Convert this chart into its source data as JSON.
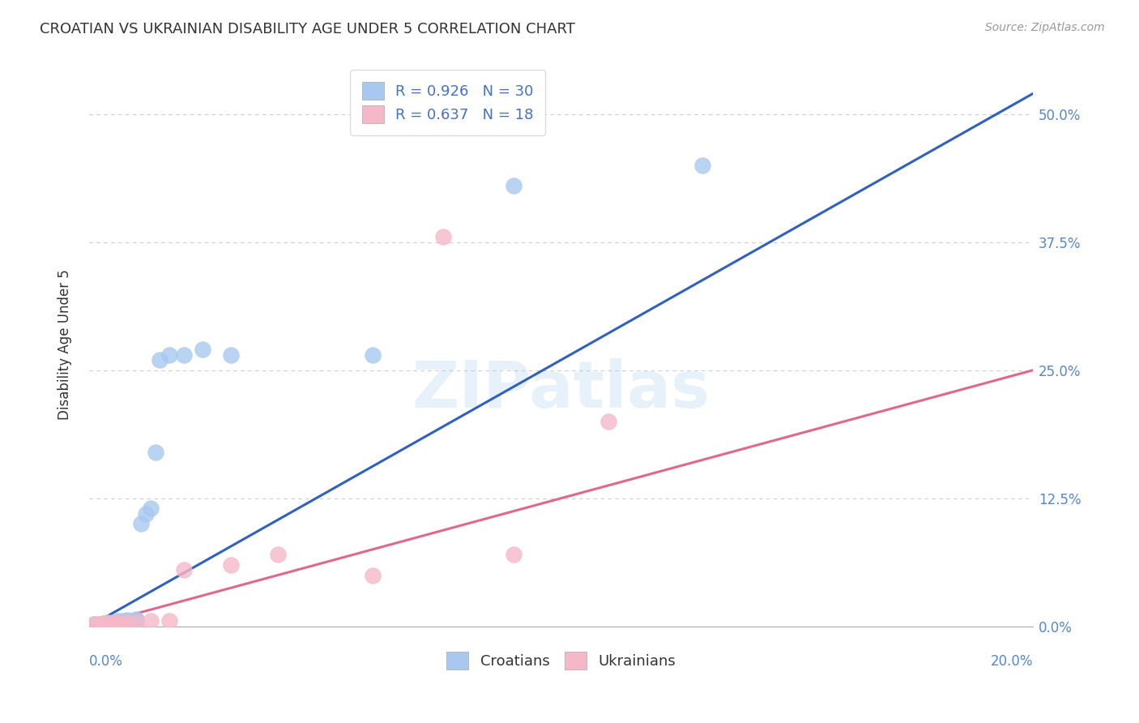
{
  "title": "CROATIAN VS UKRAINIAN DISABILITY AGE UNDER 5 CORRELATION CHART",
  "source": "Source: ZipAtlas.com",
  "ylabel": "Disability Age Under 5",
  "xlim": [
    0.0,
    0.2
  ],
  "ylim": [
    0.0,
    0.55
  ],
  "ytick_labels": [
    "0.0%",
    "12.5%",
    "25.0%",
    "37.5%",
    "50.0%"
  ],
  "ytick_values": [
    0.0,
    0.125,
    0.25,
    0.375,
    0.5
  ],
  "croatian_R": 0.926,
  "croatian_N": 30,
  "ukrainian_R": 0.637,
  "ukrainian_N": 18,
  "croatian_color": "#A8C8F0",
  "ukrainian_color": "#F5B8C8",
  "trendline_croatian_color": "#3060C0",
  "trendline_ukrainian_color": "#E06888",
  "background_color": "#FFFFFF",
  "grid_color": "#CCCCCC",
  "title_color": "#333333",
  "axis_label_color": "#5588CC",
  "legend_text_color": "#4472C4",
  "watermark": "ZIPatlas",
  "croatian_x": [
    0.001,
    0.002,
    0.003,
    0.003,
    0.004,
    0.004,
    0.005,
    0.005,
    0.006,
    0.006,
    0.006,
    0.007,
    0.007,
    0.008,
    0.008,
    0.009,
    0.01,
    0.01,
    0.011,
    0.012,
    0.013,
    0.014,
    0.015,
    0.017,
    0.02,
    0.024,
    0.03,
    0.06,
    0.09,
    0.13
  ],
  "croatian_y": [
    0.002,
    0.002,
    0.002,
    0.003,
    0.003,
    0.004,
    0.003,
    0.004,
    0.003,
    0.004,
    0.005,
    0.004,
    0.005,
    0.005,
    0.006,
    0.005,
    0.006,
    0.007,
    0.1,
    0.11,
    0.115,
    0.17,
    0.26,
    0.265,
    0.265,
    0.27,
    0.265,
    0.265,
    0.43,
    0.45
  ],
  "ukrainian_x": [
    0.001,
    0.002,
    0.003,
    0.004,
    0.005,
    0.006,
    0.007,
    0.008,
    0.01,
    0.013,
    0.017,
    0.02,
    0.03,
    0.04,
    0.06,
    0.075,
    0.09,
    0.11
  ],
  "ukrainian_y": [
    0.002,
    0.002,
    0.003,
    0.003,
    0.003,
    0.004,
    0.003,
    0.004,
    0.004,
    0.005,
    0.005,
    0.055,
    0.06,
    0.07,
    0.05,
    0.38,
    0.07,
    0.2
  ]
}
